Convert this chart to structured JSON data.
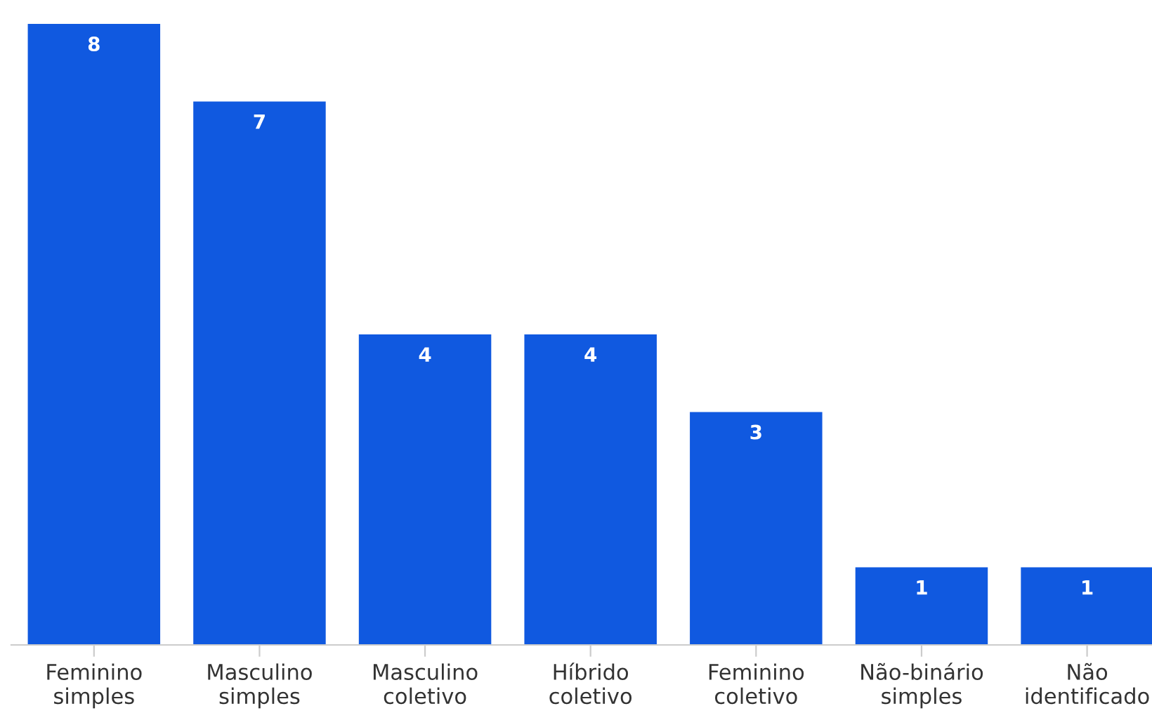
{
  "chart_data": {
    "type": "bar",
    "categories": [
      "Feminino\nsimples",
      "Masculino\nsimples",
      "Masculino\ncoletivo",
      "Híbrido\ncoletivo",
      "Feminino\ncoletivo",
      "Não-binário\nsimples",
      "Não\nidentificado"
    ],
    "values": [
      8,
      7,
      4,
      4,
      3,
      1,
      1
    ],
    "color": "#1059e0",
    "data_labels": true,
    "grid": false,
    "legend": false
  }
}
